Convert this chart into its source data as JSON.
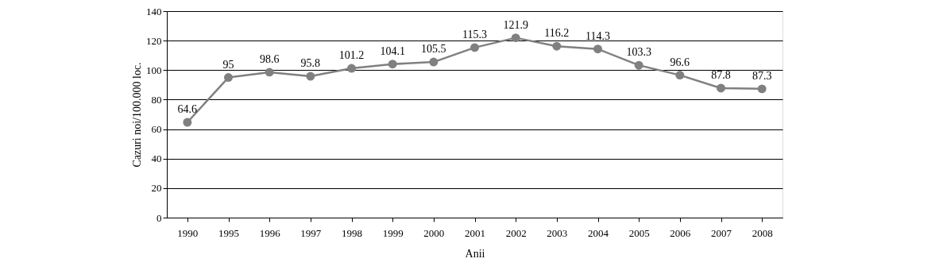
{
  "chart_data": {
    "type": "line",
    "xlabel": "Anii",
    "ylabel": "Cazuri noi/100.000 loc.",
    "categories": [
      "1990",
      "1995",
      "1996",
      "1997",
      "1998",
      "1999",
      "2000",
      "2001",
      "2002",
      "2003",
      "2004",
      "2005",
      "2006",
      "2007",
      "2008"
    ],
    "series": [
      {
        "color": "#808080",
        "values": [
          64.6,
          95,
          98.6,
          95.8,
          101.2,
          104.1,
          105.5,
          115.3,
          121.9,
          116.2,
          114.3,
          103.3,
          96.6,
          87.8,
          87.3
        ]
      }
    ],
    "ylim": [
      0,
      140
    ],
    "yticks": [
      0,
      20,
      40,
      60,
      80,
      100,
      120,
      140
    ],
    "grid": "y",
    "marker": "circle",
    "line_style": "solid",
    "data_labels": true,
    "legend": false
  }
}
